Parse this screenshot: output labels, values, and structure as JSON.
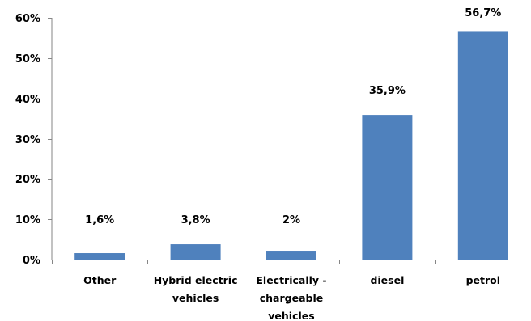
{
  "chart_data": {
    "type": "bar",
    "categories": [
      [
        "Other"
      ],
      [
        "Hybrid electric",
        "vehicles"
      ],
      [
        "Electrically -",
        "chargeable",
        "vehicles"
      ],
      [
        "diesel"
      ],
      [
        "petrol"
      ]
    ],
    "values": [
      1.6,
      3.8,
      2,
      35.9,
      56.7
    ],
    "data_labels": [
      "1,6%",
      "3,8%",
      "2%",
      "35,9%",
      "56,7%"
    ],
    "y_ticks": [
      {
        "value": 0,
        "label": "0%"
      },
      {
        "value": 10,
        "label": "10%"
      },
      {
        "value": 20,
        "label": "20%"
      },
      {
        "value": 30,
        "label": "30%"
      },
      {
        "value": 40,
        "label": "40%"
      },
      {
        "value": 50,
        "label": "50%"
      },
      {
        "value": 60,
        "label": "60%"
      }
    ],
    "ylim": [
      0,
      60
    ],
    "title": "",
    "xlabel": "",
    "ylabel": "",
    "grid": false,
    "legend": "none",
    "colors": {
      "bar": "#4f81bd",
      "axis": "#868686"
    }
  }
}
